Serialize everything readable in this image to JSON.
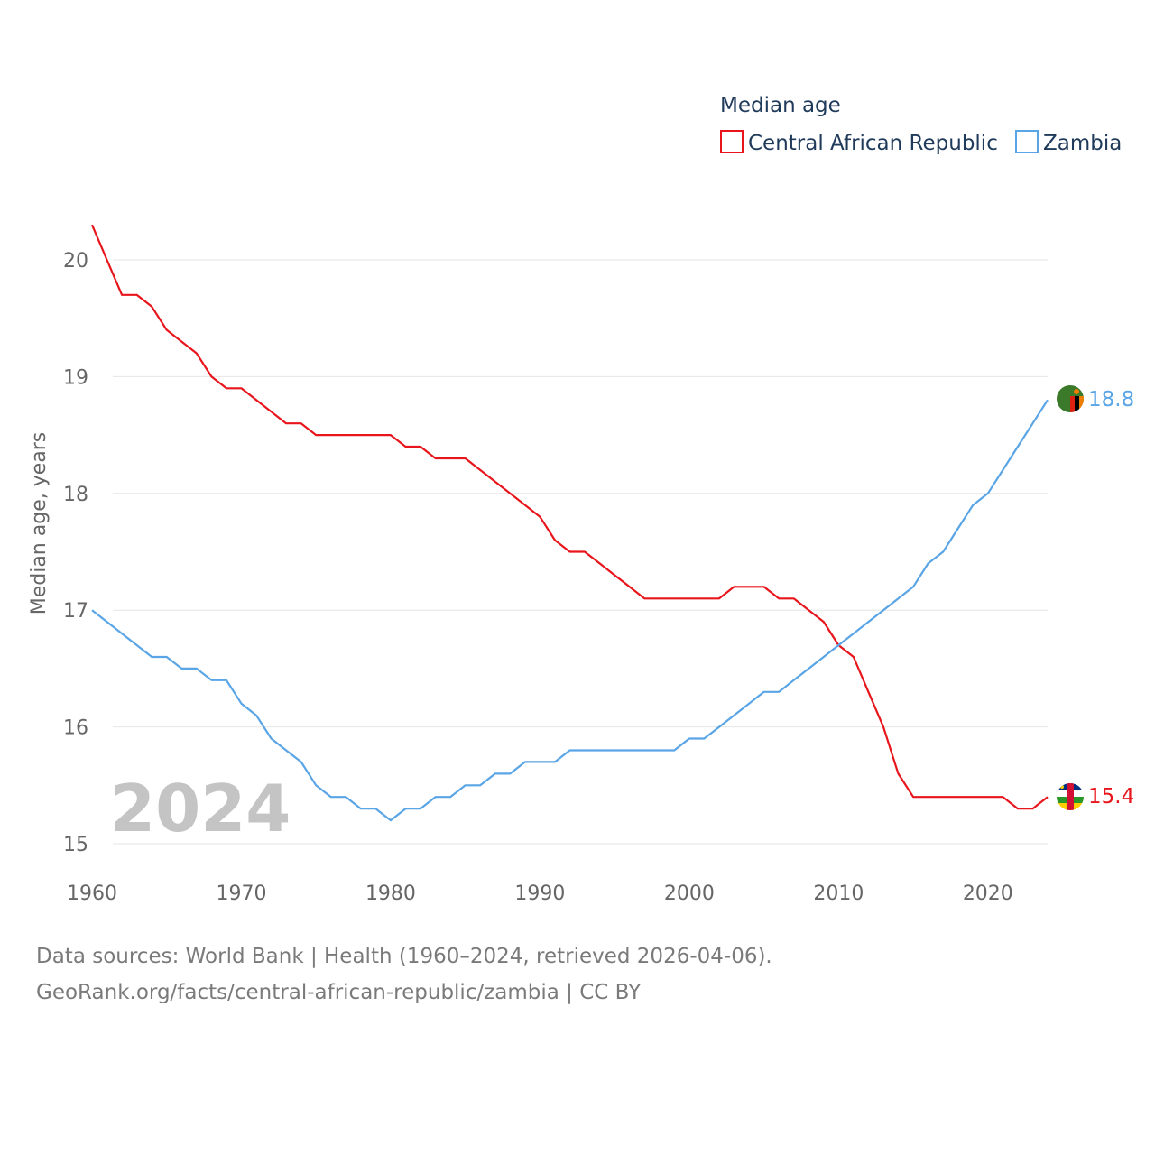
{
  "chart_data": {
    "type": "line",
    "legend_title": "Median age",
    "ylabel": "Median age, years",
    "xlabel": "",
    "current_year_label": "2024",
    "xlim": [
      1960,
      2024
    ],
    "ylim": [
      15,
      20
    ],
    "x_ticks": [
      1960,
      1970,
      1980,
      1990,
      2000,
      2010,
      2020
    ],
    "y_ticks": [
      15,
      16,
      17,
      18,
      19,
      20
    ],
    "legend_position": "top-right",
    "grid": true,
    "x": [
      1960,
      1961,
      1962,
      1963,
      1964,
      1965,
      1966,
      1967,
      1968,
      1969,
      1970,
      1971,
      1972,
      1973,
      1974,
      1975,
      1976,
      1977,
      1978,
      1979,
      1980,
      1981,
      1982,
      1983,
      1984,
      1985,
      1986,
      1987,
      1988,
      1989,
      1990,
      1991,
      1992,
      1993,
      1994,
      1995,
      1996,
      1997,
      1998,
      1999,
      2000,
      2001,
      2002,
      2003,
      2004,
      2005,
      2006,
      2007,
      2008,
      2009,
      2010,
      2011,
      2012,
      2013,
      2014,
      2015,
      2016,
      2017,
      2018,
      2019,
      2020,
      2021,
      2022,
      2023,
      2024
    ],
    "series": [
      {
        "name": "Central African Republic",
        "color": "#e8161c",
        "end_label": "15.4",
        "flag": "central-african-republic-flag-icon",
        "values": [
          20.3,
          20.0,
          19.7,
          19.7,
          19.6,
          19.4,
          19.3,
          19.2,
          19.0,
          18.9,
          18.9,
          18.8,
          18.7,
          18.6,
          18.6,
          18.5,
          18.5,
          18.5,
          18.5,
          18.5,
          18.5,
          18.4,
          18.4,
          18.3,
          18.3,
          18.3,
          18.2,
          18.1,
          18.0,
          17.9,
          17.8,
          17.6,
          17.5,
          17.5,
          17.4,
          17.3,
          17.2,
          17.1,
          17.1,
          17.1,
          17.1,
          17.1,
          17.1,
          17.2,
          17.2,
          17.2,
          17.1,
          17.1,
          17.0,
          16.9,
          16.7,
          16.6,
          16.3,
          16.0,
          15.6,
          15.4,
          15.4,
          15.4,
          15.4,
          15.4,
          15.4,
          15.4,
          15.3,
          15.3,
          15.4
        ]
      },
      {
        "name": "Zambia",
        "color": "#5aa5e6",
        "end_label": "18.8",
        "flag": "zambia-flag-icon",
        "values": [
          17.0,
          16.9,
          16.8,
          16.7,
          16.6,
          16.6,
          16.5,
          16.5,
          16.4,
          16.4,
          16.2,
          16.1,
          15.9,
          15.8,
          15.7,
          15.5,
          15.4,
          15.4,
          15.3,
          15.3,
          15.2,
          15.3,
          15.3,
          15.4,
          15.4,
          15.5,
          15.5,
          15.6,
          15.6,
          15.7,
          15.7,
          15.7,
          15.8,
          15.8,
          15.8,
          15.8,
          15.8,
          15.8,
          15.8,
          15.8,
          15.9,
          15.9,
          16.0,
          16.1,
          16.2,
          16.3,
          16.3,
          16.4,
          16.5,
          16.6,
          16.7,
          16.8,
          16.9,
          17.0,
          17.1,
          17.2,
          17.4,
          17.5,
          17.7,
          17.9,
          18.0,
          18.2,
          18.4,
          18.6,
          18.8
        ]
      }
    ]
  },
  "footer": {
    "sources": "Data sources: World Bank | Health (1960–2024, retrieved 2026-04-06).",
    "attribution": "GeoRank.org/facts/central-african-republic/zambia | CC BY"
  }
}
